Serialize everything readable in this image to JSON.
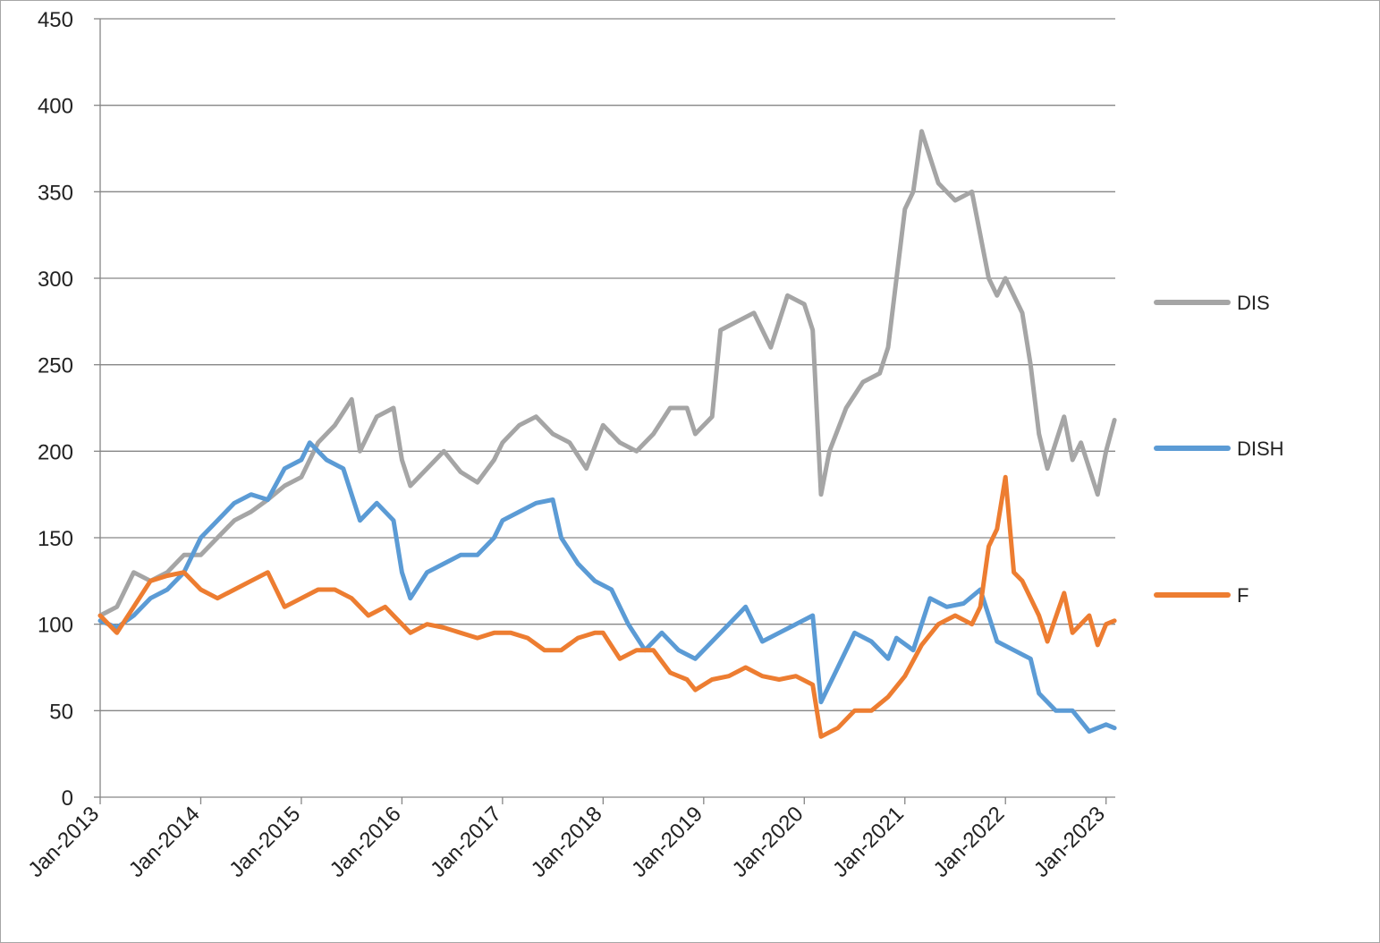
{
  "chart_data": {
    "type": "line",
    "title": "",
    "xlabel": "",
    "ylabel": "",
    "ylim": [
      0,
      450
    ],
    "yticks": [
      0,
      50,
      100,
      150,
      200,
      250,
      300,
      350,
      400,
      450
    ],
    "xlim": [
      "2013-01",
      "2023-02"
    ],
    "xticks": [
      {
        "date": "2013-01",
        "label": "Jan-2013"
      },
      {
        "date": "2014-01",
        "label": "Jan-2014"
      },
      {
        "date": "2015-01",
        "label": "Jan-2015"
      },
      {
        "date": "2016-01",
        "label": "Jan-2016"
      },
      {
        "date": "2017-01",
        "label": "Jan-2017"
      },
      {
        "date": "2018-01",
        "label": "Jan-2018"
      },
      {
        "date": "2019-01",
        "label": "Jan-2019"
      },
      {
        "date": "2020-01",
        "label": "Jan-2020"
      },
      {
        "date": "2021-01",
        "label": "Jan-2021"
      },
      {
        "date": "2022-01",
        "label": "Jan-2022"
      },
      {
        "date": "2023-01",
        "label": "Jan-2023"
      }
    ],
    "grid": "horizontal",
    "legend_position": "right",
    "series": [
      {
        "name": "DIS",
        "color": "#a5a5a5",
        "points": [
          [
            "2013-01",
            105
          ],
          [
            "2013-03",
            110
          ],
          [
            "2013-05",
            130
          ],
          [
            "2013-07",
            125
          ],
          [
            "2013-09",
            130
          ],
          [
            "2013-11",
            140
          ],
          [
            "2014-01",
            140
          ],
          [
            "2014-03",
            150
          ],
          [
            "2014-05",
            160
          ],
          [
            "2014-07",
            165
          ],
          [
            "2014-09",
            172
          ],
          [
            "2014-11",
            180
          ],
          [
            "2015-01",
            185
          ],
          [
            "2015-03",
            205
          ],
          [
            "2015-05",
            215
          ],
          [
            "2015-07",
            230
          ],
          [
            "2015-08",
            200
          ],
          [
            "2015-10",
            220
          ],
          [
            "2015-12",
            225
          ],
          [
            "2016-01",
            195
          ],
          [
            "2016-02",
            180
          ],
          [
            "2016-04",
            190
          ],
          [
            "2016-06",
            200
          ],
          [
            "2016-08",
            188
          ],
          [
            "2016-10",
            182
          ],
          [
            "2016-12",
            195
          ],
          [
            "2017-01",
            205
          ],
          [
            "2017-03",
            215
          ],
          [
            "2017-05",
            220
          ],
          [
            "2017-07",
            210
          ],
          [
            "2017-09",
            205
          ],
          [
            "2017-11",
            190
          ],
          [
            "2018-01",
            215
          ],
          [
            "2018-03",
            205
          ],
          [
            "2018-05",
            200
          ],
          [
            "2018-07",
            210
          ],
          [
            "2018-09",
            225
          ],
          [
            "2018-11",
            225
          ],
          [
            "2018-12",
            210
          ],
          [
            "2019-02",
            220
          ],
          [
            "2019-03",
            270
          ],
          [
            "2019-05",
            275
          ],
          [
            "2019-07",
            280
          ],
          [
            "2019-09",
            260
          ],
          [
            "2019-11",
            290
          ],
          [
            "2020-01",
            285
          ],
          [
            "2020-02",
            270
          ],
          [
            "2020-03",
            175
          ],
          [
            "2020-04",
            200
          ],
          [
            "2020-06",
            225
          ],
          [
            "2020-08",
            240
          ],
          [
            "2020-10",
            245
          ],
          [
            "2020-11",
            260
          ],
          [
            "2020-12",
            300
          ],
          [
            "2021-01",
            340
          ],
          [
            "2021-02",
            350
          ],
          [
            "2021-03",
            385
          ],
          [
            "2021-05",
            355
          ],
          [
            "2021-07",
            345
          ],
          [
            "2021-09",
            350
          ],
          [
            "2021-11",
            300
          ],
          [
            "2021-12",
            290
          ],
          [
            "2022-01",
            300
          ],
          [
            "2022-03",
            280
          ],
          [
            "2022-04",
            250
          ],
          [
            "2022-05",
            210
          ],
          [
            "2022-06",
            190
          ],
          [
            "2022-08",
            220
          ],
          [
            "2022-09",
            195
          ],
          [
            "2022-10",
            205
          ],
          [
            "2022-12",
            175
          ],
          [
            "2023-01",
            200
          ],
          [
            "2023-02",
            218
          ]
        ]
      },
      {
        "name": "DISH",
        "color": "#5b9bd5",
        "points": [
          [
            "2013-01",
            102
          ],
          [
            "2013-03",
            98
          ],
          [
            "2013-05",
            105
          ],
          [
            "2013-07",
            115
          ],
          [
            "2013-09",
            120
          ],
          [
            "2013-11",
            130
          ],
          [
            "2014-01",
            150
          ],
          [
            "2014-03",
            160
          ],
          [
            "2014-05",
            170
          ],
          [
            "2014-07",
            175
          ],
          [
            "2014-09",
            172
          ],
          [
            "2014-11",
            190
          ],
          [
            "2015-01",
            195
          ],
          [
            "2015-02",
            205
          ],
          [
            "2015-04",
            195
          ],
          [
            "2015-06",
            190
          ],
          [
            "2015-08",
            160
          ],
          [
            "2015-10",
            170
          ],
          [
            "2015-12",
            160
          ],
          [
            "2016-01",
            130
          ],
          [
            "2016-02",
            115
          ],
          [
            "2016-04",
            130
          ],
          [
            "2016-06",
            135
          ],
          [
            "2016-08",
            140
          ],
          [
            "2016-10",
            140
          ],
          [
            "2016-12",
            150
          ],
          [
            "2017-01",
            160
          ],
          [
            "2017-03",
            165
          ],
          [
            "2017-05",
            170
          ],
          [
            "2017-07",
            172
          ],
          [
            "2017-08",
            150
          ],
          [
            "2017-10",
            135
          ],
          [
            "2017-12",
            125
          ],
          [
            "2018-02",
            120
          ],
          [
            "2018-04",
            100
          ],
          [
            "2018-06",
            85
          ],
          [
            "2018-08",
            95
          ],
          [
            "2018-10",
            85
          ],
          [
            "2018-12",
            80
          ],
          [
            "2019-02",
            90
          ],
          [
            "2019-04",
            100
          ],
          [
            "2019-06",
            110
          ],
          [
            "2019-08",
            90
          ],
          [
            "2019-10",
            95
          ],
          [
            "2019-12",
            100
          ],
          [
            "2020-02",
            105
          ],
          [
            "2020-03",
            55
          ],
          [
            "2020-05",
            75
          ],
          [
            "2020-07",
            95
          ],
          [
            "2020-09",
            90
          ],
          [
            "2020-11",
            80
          ],
          [
            "2020-12",
            92
          ],
          [
            "2021-02",
            85
          ],
          [
            "2021-04",
            115
          ],
          [
            "2021-06",
            110
          ],
          [
            "2021-08",
            112
          ],
          [
            "2021-10",
            120
          ],
          [
            "2021-12",
            90
          ],
          [
            "2022-02",
            85
          ],
          [
            "2022-04",
            80
          ],
          [
            "2022-05",
            60
          ],
          [
            "2022-07",
            50
          ],
          [
            "2022-09",
            50
          ],
          [
            "2022-11",
            38
          ],
          [
            "2023-01",
            42
          ],
          [
            "2023-02",
            40
          ]
        ]
      },
      {
        "name": "F",
        "color": "#ed7d31",
        "points": [
          [
            "2013-01",
            105
          ],
          [
            "2013-03",
            95
          ],
          [
            "2013-05",
            110
          ],
          [
            "2013-07",
            125
          ],
          [
            "2013-09",
            128
          ],
          [
            "2013-11",
            130
          ],
          [
            "2014-01",
            120
          ],
          [
            "2014-03",
            115
          ],
          [
            "2014-05",
            120
          ],
          [
            "2014-07",
            125
          ],
          [
            "2014-09",
            130
          ],
          [
            "2014-11",
            110
          ],
          [
            "2015-01",
            115
          ],
          [
            "2015-03",
            120
          ],
          [
            "2015-05",
            120
          ],
          [
            "2015-07",
            115
          ],
          [
            "2015-09",
            105
          ],
          [
            "2015-11",
            110
          ],
          [
            "2015-12",
            105
          ],
          [
            "2016-02",
            95
          ],
          [
            "2016-04",
            100
          ],
          [
            "2016-06",
            98
          ],
          [
            "2016-08",
            95
          ],
          [
            "2016-10",
            92
          ],
          [
            "2016-12",
            95
          ],
          [
            "2017-02",
            95
          ],
          [
            "2017-04",
            92
          ],
          [
            "2017-06",
            85
          ],
          [
            "2017-08",
            85
          ],
          [
            "2017-10",
            92
          ],
          [
            "2017-12",
            95
          ],
          [
            "2018-01",
            95
          ],
          [
            "2018-03",
            80
          ],
          [
            "2018-05",
            85
          ],
          [
            "2018-07",
            85
          ],
          [
            "2018-09",
            72
          ],
          [
            "2018-11",
            68
          ],
          [
            "2018-12",
            62
          ],
          [
            "2019-02",
            68
          ],
          [
            "2019-04",
            70
          ],
          [
            "2019-06",
            75
          ],
          [
            "2019-08",
            70
          ],
          [
            "2019-10",
            68
          ],
          [
            "2019-12",
            70
          ],
          [
            "2020-02",
            65
          ],
          [
            "2020-03",
            35
          ],
          [
            "2020-05",
            40
          ],
          [
            "2020-07",
            50
          ],
          [
            "2020-09",
            50
          ],
          [
            "2020-11",
            58
          ],
          [
            "2021-01",
            70
          ],
          [
            "2021-03",
            88
          ],
          [
            "2021-05",
            100
          ],
          [
            "2021-07",
            105
          ],
          [
            "2021-09",
            100
          ],
          [
            "2021-10",
            110
          ],
          [
            "2021-11",
            145
          ],
          [
            "2021-12",
            155
          ],
          [
            "2022-01",
            185
          ],
          [
            "2022-02",
            130
          ],
          [
            "2022-03",
            125
          ],
          [
            "2022-05",
            105
          ],
          [
            "2022-06",
            90
          ],
          [
            "2022-08",
            118
          ],
          [
            "2022-09",
            95
          ],
          [
            "2022-11",
            105
          ],
          [
            "2022-12",
            88
          ],
          [
            "2023-01",
            100
          ],
          [
            "2023-02",
            102
          ]
        ]
      }
    ]
  }
}
